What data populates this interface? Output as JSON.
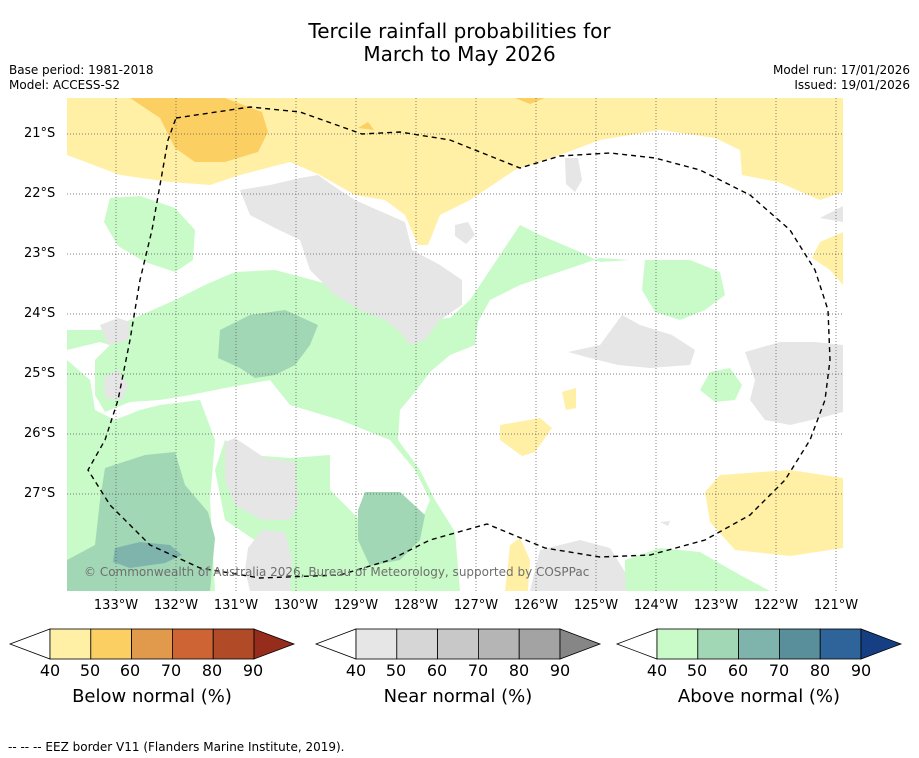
{
  "title": {
    "line1": "Tercile rainfall probabilities for",
    "line2": "March to May 2026"
  },
  "meta": {
    "base_period": "Base period: 1981-2018",
    "model": "Model: ACCESS-S2",
    "model_run": "Model run: 17/01/2026",
    "issued": "Issued: 19/01/2026"
  },
  "map": {
    "lat_labels": [
      "21°S",
      "22°S",
      "23°S",
      "24°S",
      "25°S",
      "26°S",
      "27°S"
    ],
    "lon_labels": [
      "133°W",
      "132°W",
      "131°W",
      "130°W",
      "129°W",
      "128°W",
      "127°W",
      "126°W",
      "125°W",
      "124°W",
      "123°W",
      "122°W",
      "121°W"
    ],
    "copyright": "© Commonwealth of Australia 2026, Bureau of Meteorology, supported by COSPPac",
    "eez_label": "EEZ border"
  },
  "colorbars": [
    {
      "title": "Below normal (%)",
      "ticks": [
        "40",
        "50",
        "60",
        "70",
        "80",
        "90"
      ],
      "colors": [
        "#fff0a6",
        "#fccf63",
        "#e19a4c",
        "#ce6433",
        "#b14a27",
        "#962d1c"
      ]
    },
    {
      "title": "Near normal (%)",
      "ticks": [
        "40",
        "50",
        "60",
        "70",
        "80",
        "90"
      ],
      "colors": [
        "#e6e6e6",
        "#d6d6d6",
        "#c8c8c8",
        "#b5b5b5",
        "#a3a3a3",
        "#868686"
      ]
    },
    {
      "title": "Above normal (%)",
      "ticks": [
        "40",
        "50",
        "60",
        "70",
        "80",
        "90"
      ],
      "colors": [
        "#c8fbc8",
        "#a2d7b5",
        "#7fb4ad",
        "#588f9b",
        "#2f649a",
        "#163f83"
      ]
    }
  ],
  "footer": "--  --  -- EEZ border V11 (Flanders Marine Institute, 2019)."
}
